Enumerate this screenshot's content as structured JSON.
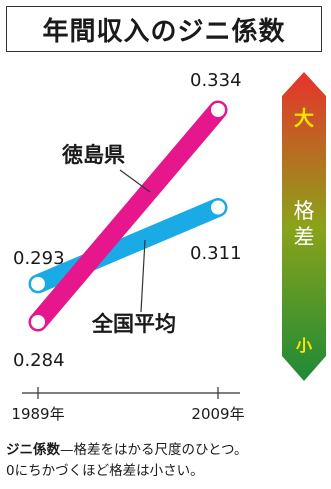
{
  "title": "年間収入のジニ係数",
  "chart_data": {
    "type": "line",
    "title": "年間収入のジニ係数",
    "categories": [
      "1989年",
      "2009年"
    ],
    "series": [
      {
        "name": "徳島県",
        "values": [
          0.284,
          0.334
        ],
        "value_labels": [
          "0.284",
          "0.334"
        ],
        "color": "#e6168c"
      },
      {
        "name": "全国平均",
        "values": [
          0.293,
          0.311
        ],
        "value_labels": [
          "0.293",
          "0.311"
        ],
        "color": "#1aabe6"
      }
    ],
    "scale": {
      "label": "格差",
      "top_label": "大",
      "bottom_label": "小",
      "colors": [
        "#e8322c",
        "#8aa31a",
        "#1e8a38"
      ]
    }
  },
  "footnote": {
    "term": "ジニ係数",
    "definition": "—格差をはかる尺度のひとつ。",
    "line2": "0にちかづくほど格差は小さい。"
  }
}
